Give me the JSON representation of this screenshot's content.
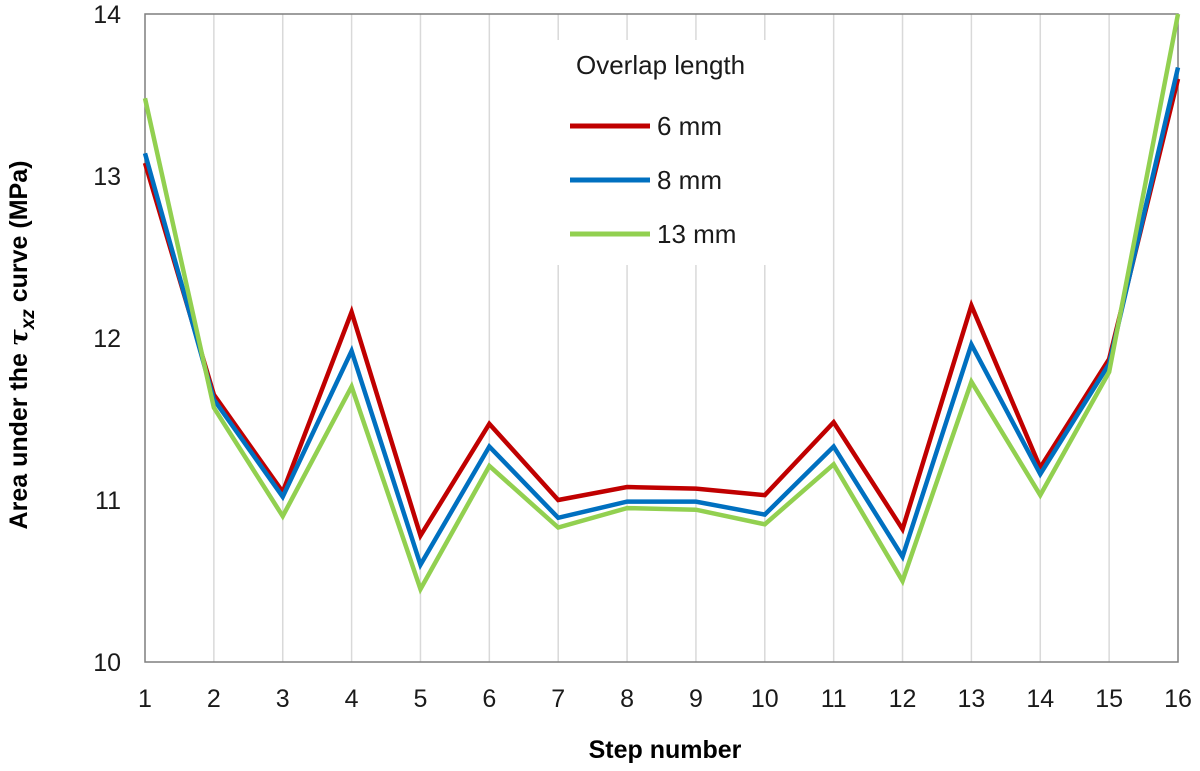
{
  "chart_data": {
    "type": "line",
    "x": [
      1,
      2,
      3,
      4,
      5,
      6,
      7,
      8,
      9,
      10,
      11,
      12,
      13,
      14,
      15,
      16
    ],
    "xlabel": "Step number",
    "ylabel_prefix": "Area under the ",
    "ylabel_symbol": "τ",
    "ylabel_subscript": "xz",
    "ylabel_suffix": " curve (MPa)",
    "ylim": [
      10,
      14
    ],
    "yticks": [
      10,
      11,
      12,
      13,
      14
    ],
    "xticks": [
      "1",
      "2",
      "3",
      "4",
      "5",
      "6",
      "7",
      "8",
      "9",
      "10",
      "11",
      "12",
      "13",
      "14",
      "15",
      "16"
    ],
    "grid": "vertical",
    "legend": {
      "title": "Overlap  length",
      "placement": "top-center"
    },
    "series": [
      {
        "name": "6 mm",
        "color": "#c00000",
        "values": [
          13.08,
          11.65,
          11.05,
          12.16,
          10.78,
          11.47,
          11.0,
          11.08,
          11.07,
          11.03,
          11.48,
          10.82,
          12.2,
          11.2,
          11.87,
          13.6
        ]
      },
      {
        "name": "8 mm",
        "color": "#0070c0",
        "values": [
          13.14,
          11.62,
          11.02,
          11.92,
          10.6,
          11.33,
          10.89,
          10.99,
          10.99,
          10.91,
          11.33,
          10.65,
          11.96,
          11.16,
          11.84,
          13.67
        ]
      },
      {
        "name": "13 mm",
        "color": "#92d050",
        "values": [
          13.48,
          11.57,
          10.9,
          11.7,
          10.45,
          11.21,
          10.83,
          10.95,
          10.94,
          10.85,
          11.22,
          10.5,
          11.73,
          11.03,
          11.79,
          14.0
        ]
      }
    ]
  }
}
